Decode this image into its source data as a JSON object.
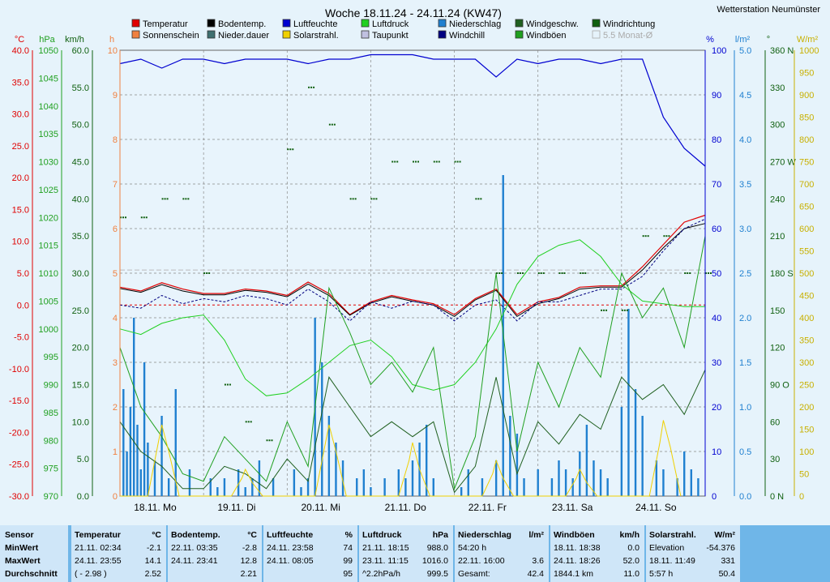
{
  "title": "Woche 18.11.24 - 24.11.24 (KW47)",
  "station": "Wetterstation Neumünster",
  "legend": [
    {
      "label": "Temperatur",
      "color": "#e00000"
    },
    {
      "label": "Sonnenschein",
      "color": "#f08040"
    },
    {
      "label": "Bodentemp.",
      "color": "#000000"
    },
    {
      "label": "Nieder.dauer",
      "color": "#407070"
    },
    {
      "label": "Luftfeuchte",
      "color": "#0000d0"
    },
    {
      "label": "Solarstrahl.",
      "color": "#f0d000"
    },
    {
      "label": "Luftdruck",
      "color": "#20d020"
    },
    {
      "label": "Taupunkt",
      "color": "#c0c0e0"
    },
    {
      "label": "Niederschlag",
      "color": "#2080d0"
    },
    {
      "label": "Windchill",
      "color": "#000080"
    },
    {
      "label": "Windgeschw.",
      "color": "#206020"
    },
    {
      "label": "Windböen",
      "color": "#20a020"
    },
    {
      "label": "Windrichtung",
      "color": "#106010"
    },
    {
      "label": "5.5 Monat-Ø",
      "color": "#aaaaaa"
    }
  ],
  "axes": {
    "temp_unit": "°C",
    "hpa_unit": "hPa",
    "kmh_unit": "km/h",
    "h_unit": "h",
    "pct_unit": "%",
    "lm2_unit": "l/m²",
    "deg_unit": "°",
    "wm2_unit": "W/m²",
    "temp_ticks": [
      "40.0",
      "35.0",
      "30.0",
      "25.0",
      "20.0",
      "15.0",
      "10.0",
      "5.0",
      "0.0",
      "-5.0",
      "-10.0",
      "-15.0",
      "-20.0",
      "-25.0",
      "-30.0"
    ],
    "hpa_ticks": [
      "1050",
      "1045",
      "1040",
      "1035",
      "1030",
      "1025",
      "1020",
      "1015",
      "1010",
      "1005",
      "1000",
      "995",
      "990",
      "985",
      "980",
      "975",
      "970"
    ],
    "kmh_ticks": [
      "60.0",
      "55.0",
      "50.0",
      "45.0",
      "40.0",
      "35.0",
      "30.0",
      "25.0",
      "20.0",
      "15.0",
      "10.0",
      "5.0",
      "0.0"
    ],
    "h_ticks": [
      "10",
      "9",
      "8",
      "7",
      "6",
      "5",
      "4",
      "3",
      "2",
      "1",
      "0"
    ],
    "pct_ticks": [
      "100",
      "90",
      "80",
      "70",
      "60",
      "50",
      "40",
      "30",
      "20",
      "10",
      "0"
    ],
    "lm2_ticks": [
      "5.0",
      "4.5",
      "4.0",
      "3.5",
      "3.0",
      "2.5",
      "2.0",
      "1.5",
      "1.0",
      "0.5",
      "0.0"
    ],
    "deg_ticks": [
      "360 N",
      "330",
      "300",
      "270 W",
      "240",
      "210",
      "180 S",
      "150",
      "120",
      "90 O",
      "60",
      "30",
      "0 N"
    ],
    "wm2_ticks": [
      "1000",
      "950",
      "900",
      "850",
      "800",
      "750",
      "700",
      "650",
      "600",
      "550",
      "500",
      "450",
      "400",
      "350",
      "300",
      "250",
      "200",
      "150",
      "100",
      "50",
      "0"
    ],
    "day_labels": [
      "18.11. Mo",
      "19.11. Di",
      "20.11. Mi",
      "21.11. Do",
      "22.11. Fr",
      "23.11. Sa",
      "24.11. So"
    ]
  },
  "chart_data": {
    "type": "line",
    "title": "Woche 18.11.24 - 24.11.24 (KW47)",
    "x_range": [
      "18.11. 00:00",
      "25.11. 00:00"
    ],
    "temp_range": [
      -30,
      40
    ],
    "hpa_range": [
      970,
      1050
    ],
    "kmh_range": [
      0,
      60
    ],
    "pct_range": [
      0,
      100
    ],
    "lm2_range": [
      0,
      5
    ],
    "deg_range": [
      0,
      360
    ],
    "wm2_range": [
      0,
      1000
    ],
    "series": [
      {
        "name": "Temperatur",
        "unit": "°C",
        "x_hours": [
          0,
          6,
          12,
          18,
          24,
          30,
          36,
          42,
          48,
          54,
          60,
          66,
          72,
          78,
          84,
          90,
          96,
          102,
          108,
          114,
          120,
          126,
          132,
          138,
          144,
          150,
          156,
          162,
          168
        ],
        "values": [
          2.8,
          2.2,
          3.5,
          2.5,
          1.8,
          1.8,
          2.5,
          2.2,
          1.5,
          3.6,
          1.8,
          -1.5,
          0.5,
          1.5,
          0.8,
          0.2,
          -1.5,
          1.0,
          2.5,
          -1.5,
          0.5,
          1.2,
          2.8,
          3.0,
          3.0,
          6.0,
          9.5,
          13.0,
          14.1
        ]
      },
      {
        "name": "Bodentemp.",
        "unit": "°C",
        "x_hours": [
          0,
          6,
          12,
          18,
          24,
          30,
          36,
          42,
          48,
          54,
          60,
          66,
          72,
          78,
          84,
          90,
          96,
          102,
          108,
          114,
          120,
          126,
          132,
          138,
          144,
          150,
          156,
          162,
          168
        ],
        "values": [
          2.6,
          2.0,
          3.2,
          2.2,
          1.6,
          1.6,
          2.3,
          2.0,
          1.3,
          3.3,
          1.5,
          -1.6,
          0.3,
          1.3,
          0.6,
          0.0,
          -1.8,
          0.8,
          2.3,
          -1.8,
          0.2,
          1.0,
          2.5,
          2.8,
          2.8,
          5.5,
          9.0,
          12.0,
          12.8
        ]
      },
      {
        "name": "Windchill",
        "unit": "°C",
        "x_hours": [
          0,
          6,
          12,
          18,
          24,
          30,
          36,
          42,
          48,
          54,
          60,
          66,
          72,
          78,
          84,
          90,
          96,
          102,
          108,
          114,
          120,
          126,
          132,
          138,
          144,
          150,
          156,
          162,
          168
        ],
        "values": [
          0.0,
          -0.5,
          1.5,
          0.2,
          1.0,
          0.5,
          1.5,
          1.0,
          0.0,
          2.5,
          0.5,
          -2.5,
          0.5,
          -0.5,
          0.6,
          0.0,
          -2.5,
          0.0,
          0.8,
          -2.5,
          0.5,
          0.5,
          1.5,
          2.5,
          2.5,
          4.5,
          8.5,
          12.0,
          13.5
        ]
      },
      {
        "name": "Luftdruck",
        "unit": "hPa",
        "x_hours": [
          0,
          6,
          12,
          18,
          24,
          30,
          36,
          42,
          48,
          54,
          60,
          66,
          72,
          78,
          84,
          90,
          96,
          102,
          108,
          114,
          120,
          126,
          132,
          138,
          144,
          150,
          156,
          162,
          168
        ],
        "values": [
          1000.0,
          999.0,
          1001.0,
          1002.0,
          1002.5,
          998.0,
          991.0,
          988.0,
          988.5,
          991.0,
          994.0,
          997.0,
          998.0,
          995.0,
          990.0,
          989.0,
          990.0,
          994.0,
          1000.0,
          1008.0,
          1013.0,
          1015.0,
          1016.0,
          1013.0,
          1008.0,
          1005.0,
          1004.5,
          1004.0,
          1004.0
        ]
      },
      {
        "name": "Luftfeuchte",
        "unit": "%",
        "x_hours": [
          0,
          6,
          12,
          18,
          24,
          30,
          36,
          42,
          48,
          54,
          60,
          66,
          72,
          78,
          84,
          90,
          96,
          102,
          108,
          114,
          120,
          126,
          132,
          138,
          144,
          150,
          156,
          162,
          168
        ],
        "values": [
          97,
          98,
          96,
          98,
          98,
          97,
          98,
          98,
          98,
          97,
          98,
          98,
          99,
          99,
          99,
          98,
          98,
          98,
          94,
          98,
          97,
          98,
          98,
          97,
          98,
          98,
          85,
          78,
          74
        ]
      },
      {
        "name": "Windböen",
        "unit": "km/h",
        "x_hours": [
          0,
          6,
          12,
          18,
          24,
          30,
          36,
          42,
          48,
          54,
          60,
          66,
          72,
          78,
          84,
          90,
          96,
          102,
          108,
          114,
          120,
          126,
          132,
          138,
          144,
          150,
          156,
          162,
          168
        ],
        "values": [
          20.0,
          12.0,
          8.0,
          3.0,
          2.0,
          8.0,
          5.0,
          2.0,
          10.0,
          4.0,
          28.0,
          22.0,
          15.0,
          18.0,
          14.0,
          20.0,
          1.0,
          8.0,
          30.0,
          6.0,
          18.0,
          12.0,
          20.0,
          16.0,
          30.0,
          24.0,
          28.0,
          20.0,
          35.0
        ]
      },
      {
        "name": "Windgeschw.",
        "unit": "km/h",
        "x_hours": [
          0,
          6,
          12,
          18,
          24,
          30,
          36,
          42,
          48,
          54,
          60,
          66,
          72,
          78,
          84,
          90,
          96,
          102,
          108,
          114,
          120,
          126,
          132,
          138,
          144,
          150,
          156,
          162,
          168
        ],
        "values": [
          10.0,
          6.0,
          4.0,
          1.0,
          1.0,
          4.0,
          3.0,
          1.0,
          5.0,
          2.0,
          16.0,
          12.0,
          8.0,
          10.0,
          8.0,
          10.0,
          0.5,
          4.0,
          16.0,
          3.0,
          10.0,
          7.0,
          11.0,
          9.0,
          16.0,
          13.0,
          15.0,
          11.0,
          17.0
        ]
      },
      {
        "name": "Windrichtung",
        "unit": "°",
        "x_hours": [
          0,
          6,
          12,
          18,
          24,
          30,
          36,
          42,
          48,
          54,
          60,
          66,
          72,
          78,
          84,
          90,
          96,
          102,
          108,
          114,
          120,
          126,
          132,
          138,
          144,
          150,
          156,
          162,
          168
        ],
        "values": [
          225,
          225,
          240,
          240,
          180,
          90,
          60,
          45,
          280,
          330,
          300,
          240,
          240,
          270,
          270,
          270,
          270,
          240,
          180,
          180,
          180,
          180,
          180,
          150,
          150,
          210,
          210,
          180,
          180
        ]
      },
      {
        "name": "Solarstrahl.",
        "unit": "W/m²",
        "x_hours": [
          0,
          8,
          11,
          12,
          14,
          17,
          32,
          35,
          36,
          38,
          41,
          56,
          59,
          60,
          62,
          65,
          80,
          83,
          84,
          86,
          89,
          104,
          107,
          108,
          110,
          113,
          128,
          131,
          132,
          134,
          137,
          152,
          155,
          156,
          158,
          161
        ],
        "values": [
          0,
          0,
          120,
          160,
          100,
          0,
          0,
          40,
          60,
          30,
          0,
          0,
          120,
          160,
          100,
          0,
          0,
          80,
          120,
          60,
          0,
          0,
          50,
          80,
          40,
          0,
          0,
          40,
          60,
          30,
          0,
          0,
          120,
          170,
          110,
          0
        ]
      },
      {
        "name": "Niederschlag",
        "unit": "l/m²",
        "x_hours": [
          1,
          2,
          3,
          4,
          5,
          6,
          7,
          8,
          10,
          12,
          14,
          16,
          20,
          26,
          28,
          30,
          34,
          36,
          38,
          40,
          44,
          50,
          52,
          54,
          56,
          58,
          60,
          62,
          64,
          68,
          70,
          72,
          76,
          80,
          82,
          84,
          86,
          88,
          90,
          98,
          100,
          104,
          108,
          110,
          112,
          114,
          116,
          120,
          124,
          126,
          128,
          130,
          132,
          134,
          136,
          138,
          140,
          144,
          146,
          148,
          150,
          154,
          156,
          160,
          162,
          164,
          166
        ],
        "values": [
          1.2,
          0.5,
          1.0,
          2.0,
          0.8,
          0.3,
          1.5,
          0.6,
          0.4,
          0.9,
          0.2,
          1.2,
          0.3,
          0.2,
          0.1,
          0.2,
          0.3,
          0.1,
          0.2,
          0.4,
          0.2,
          0.3,
          0.1,
          0.2,
          2.0,
          1.5,
          0.9,
          0.6,
          0.4,
          0.2,
          0.3,
          0.1,
          0.2,
          0.3,
          0.2,
          0.4,
          0.6,
          0.8,
          0.2,
          0.1,
          0.3,
          0.2,
          0.4,
          3.6,
          0.9,
          0.7,
          0.2,
          0.3,
          0.2,
          0.4,
          0.3,
          0.2,
          0.5,
          0.8,
          0.4,
          0.3,
          0.2,
          1.0,
          2.1,
          1.2,
          0.9,
          0.4,
          0.3,
          0.2,
          0.5,
          0.3,
          0.2
        ]
      }
    ]
  },
  "table": {
    "row_labels": [
      "Sensor",
      "MinWert",
      "MaxWert",
      "Durchschnitt"
    ],
    "columns": [
      {
        "header": "Temperatur",
        "unit": "°C",
        "rows": [
          {
            "l": "21.11.  02:34",
            "r": "-2.1"
          },
          {
            "l": "24.11.  23:55",
            "r": "14.1"
          },
          {
            "l": "( - 2.98 )",
            "r": "2.52"
          }
        ]
      },
      {
        "header": "Bodentemp.",
        "unit": "°C",
        "rows": [
          {
            "l": "22.11.  03:35",
            "r": "-2.8"
          },
          {
            "l": "24.11.  23:41",
            "r": "12.8"
          },
          {
            "l": "",
            "r": "2.21"
          }
        ]
      },
      {
        "header": "Luftfeuchte",
        "unit": "%",
        "rows": [
          {
            "l": "24.11.  23:58",
            "r": "74"
          },
          {
            "l": "24.11.  08:05",
            "r": "99"
          },
          {
            "l": "",
            "r": "95"
          }
        ]
      },
      {
        "header": "Luftdruck",
        "unit": "hPa",
        "rows": [
          {
            "l": "21.11.  18:15",
            "r": "988.0"
          },
          {
            "l": "23.11.  11:15",
            "r": "1016.0"
          },
          {
            "l": "^2.2hPa/h",
            "r": "999.5"
          }
        ]
      },
      {
        "header": "Niederschlag",
        "unit": "l/m²",
        "rows": [
          {
            "l": "54:20 h",
            "r": ""
          },
          {
            "l": "22.11.  16:00",
            "r": "3.6"
          },
          {
            "l": "Gesamt:",
            "r": "42.4"
          }
        ]
      },
      {
        "header": "Windböen",
        "unit": "km/h",
        "rows": [
          {
            "l": "18.11.  18:38",
            "r": "0.0"
          },
          {
            "l": "24.11.  18:26",
            "r": "52.0"
          },
          {
            "l": "1844.1 km",
            "r": "11.0"
          }
        ]
      },
      {
        "header": "Solarstrahl.",
        "unit": "W/m²",
        "rows": [
          {
            "l": "Elevation",
            "r": "-54.376"
          },
          {
            "l": "18.11.  11:49",
            "r": "331"
          },
          {
            "l": "5:57 h",
            "r": "50.4"
          }
        ]
      }
    ]
  }
}
